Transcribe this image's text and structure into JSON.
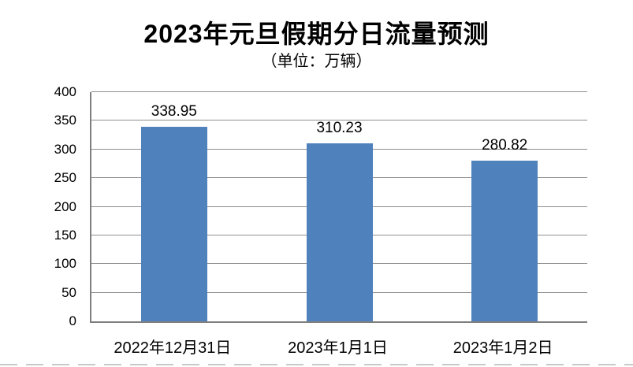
{
  "header": {
    "title": "2023年元旦假期分日流量预测",
    "subtitle": "（单位：万辆）"
  },
  "colors": {
    "bar": "#4f81bd",
    "gridline": "#8e8e8e",
    "axis": "#7f7f7f",
    "text": "#000000",
    "background": "#ffffff",
    "bottom_dashes": "#c9c9c9"
  },
  "chart_data": {
    "type": "bar",
    "title": "2023年元旦假期分日流量预测",
    "subtitle": "（单位：万辆）",
    "categories": [
      "2022年12月31日",
      "2023年1月1日",
      "2023年1月2日"
    ],
    "values": [
      338.95,
      310.23,
      280.82
    ],
    "data_labels": [
      "338.95",
      "310.23",
      "280.82"
    ],
    "xlabel": "",
    "ylabel": "",
    "ylim": [
      0,
      400
    ],
    "yticks": [
      0,
      50,
      100,
      150,
      200,
      250,
      300,
      350,
      400
    ],
    "grid": true,
    "legend": false,
    "bar_color": "#4f81bd"
  }
}
